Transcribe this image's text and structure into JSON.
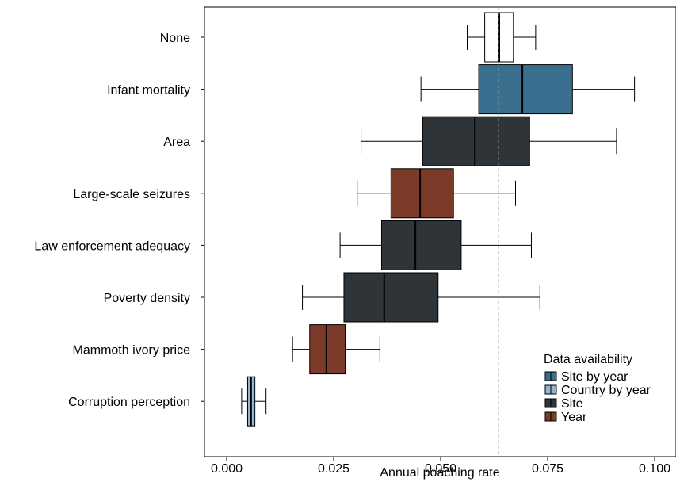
{
  "chart_data": {
    "type": "boxplot",
    "orientation": "horizontal",
    "xlabel": "Annual poaching rate",
    "xlim": [
      -0.0045,
      0.1045
    ],
    "xticks": [
      0.0,
      0.025,
      0.05,
      0.075,
      0.1
    ],
    "xtick_labels": [
      "0.000",
      "0.025",
      "0.050",
      "0.075",
      "0.100"
    ],
    "reference_line": {
      "value": 0.0635,
      "style": "dashed",
      "color": "#999999"
    },
    "grid": false,
    "legend": {
      "title": "Data availability",
      "position": "bottom-right",
      "entries": [
        {
          "label": "Site by year",
          "color": "#3b6f8f"
        },
        {
          "label": "Country by year",
          "color": "#91b4d1"
        },
        {
          "label": "Site",
          "color": "#2e3437"
        },
        {
          "label": "Year",
          "color": "#7c3a28"
        }
      ]
    },
    "categories": [
      {
        "label": "None",
        "group": "none",
        "color": "#ffffff",
        "whisker_low": 0.0562,
        "q1": 0.0603,
        "median": 0.0637,
        "q3": 0.067,
        "whisker_high": 0.0722
      },
      {
        "label": "Infant mortality",
        "group": "Site by year",
        "color": "#3b6f8f",
        "whisker_low": 0.0454,
        "q1": 0.0589,
        "median": 0.0691,
        "q3": 0.0808,
        "whisker_high": 0.0953
      },
      {
        "label": "Area",
        "group": "Site",
        "color": "#2e3437",
        "whisker_low": 0.0314,
        "q1": 0.0458,
        "median": 0.058,
        "q3": 0.0708,
        "whisker_high": 0.0911
      },
      {
        "label": "Large-scale seizures",
        "group": "Year",
        "color": "#7c3a28",
        "whisker_low": 0.0305,
        "q1": 0.0384,
        "median": 0.0452,
        "q3": 0.053,
        "whisker_high": 0.0675
      },
      {
        "label": "Law enforcement adequacy",
        "group": "Site",
        "color": "#2e3437",
        "whisker_low": 0.0265,
        "q1": 0.0362,
        "median": 0.0441,
        "q3": 0.0548,
        "whisker_high": 0.0712
      },
      {
        "label": "Poverty density",
        "group": "Site",
        "color": "#2e3437",
        "whisker_low": 0.0177,
        "q1": 0.0274,
        "median": 0.0368,
        "q3": 0.0494,
        "whisker_high": 0.0732
      },
      {
        "label": "Mammoth ivory price",
        "group": "Year",
        "color": "#7c3a28",
        "whisker_low": 0.0154,
        "q1": 0.0194,
        "median": 0.0233,
        "q3": 0.0277,
        "whisker_high": 0.0358
      },
      {
        "label": "Corruption perception",
        "group": "Country by year",
        "color": "#91b4d1",
        "whisker_low": 0.0035,
        "q1": 0.0049,
        "median": 0.0057,
        "q3": 0.0066,
        "whisker_high": 0.0092
      }
    ]
  }
}
